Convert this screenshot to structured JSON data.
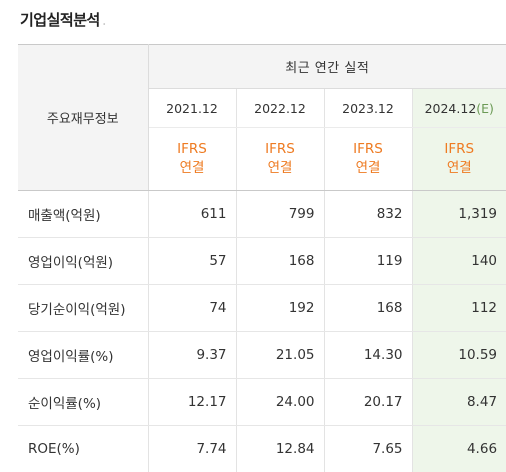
{
  "section": {
    "title": "기업실적분석"
  },
  "table": {
    "label_header": "주요재무정보",
    "group_header": "최근 연간 실적",
    "years": [
      {
        "year": "2021.12",
        "suffix": "",
        "basis_line1": "IFRS",
        "basis_line2": "연결"
      },
      {
        "year": "2022.12",
        "suffix": "",
        "basis_line1": "IFRS",
        "basis_line2": "연결"
      },
      {
        "year": "2023.12",
        "suffix": "",
        "basis_line1": "IFRS",
        "basis_line2": "연결"
      },
      {
        "year": "2024.12",
        "suffix": "(E)",
        "basis_line1": "IFRS",
        "basis_line2": "연결"
      }
    ],
    "rows": [
      {
        "label": "매출액(억원)",
        "values": [
          "611",
          "799",
          "832",
          "1,319"
        ]
      },
      {
        "label": "영업이익(억원)",
        "values": [
          "57",
          "168",
          "119",
          "140"
        ]
      },
      {
        "label": "당기순이익(억원)",
        "values": [
          "74",
          "192",
          "168",
          "112"
        ]
      },
      {
        "label": "영업이익률(%)",
        "values": [
          "9.37",
          "21.05",
          "14.30",
          "10.59"
        ]
      },
      {
        "label": "순이익률(%)",
        "values": [
          "12.17",
          "24.00",
          "20.17",
          "8.47"
        ]
      },
      {
        "label": "ROE(%)",
        "values": [
          "7.74",
          "12.84",
          "7.65",
          "4.66"
        ]
      }
    ]
  },
  "colors": {
    "estimate_bg": "#eef6ea",
    "ifrs_text": "#ee7b22",
    "header_bg": "#f4f4f4"
  }
}
